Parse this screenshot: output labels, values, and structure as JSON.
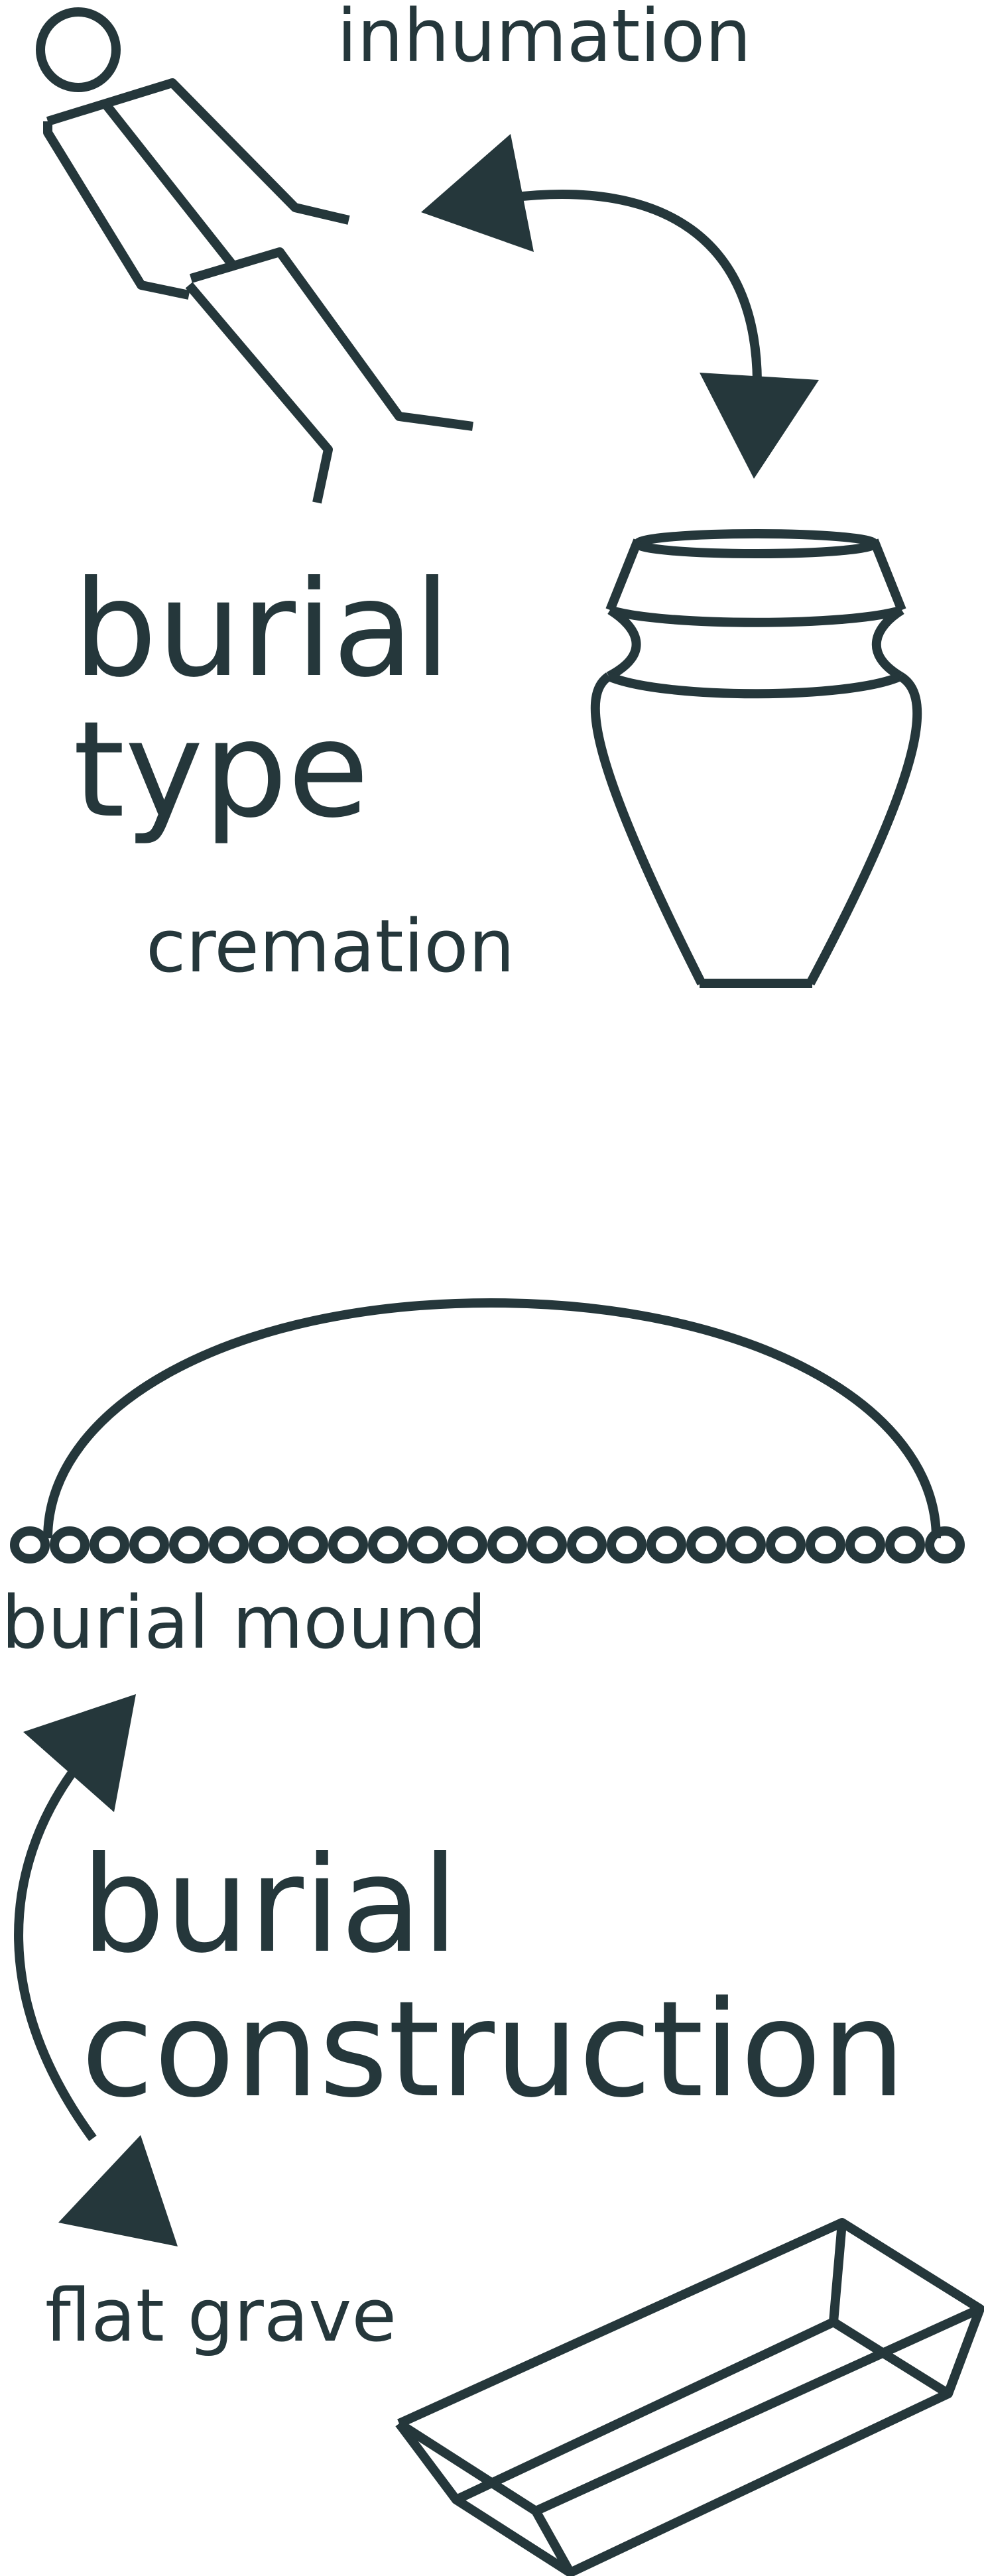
{
  "colors": {
    "ink": "#25373b",
    "background": "#ffffff"
  },
  "burial_type": {
    "title_line1": "burial",
    "title_line2": "type",
    "option_top": "inhumation",
    "option_bottom": "cremation",
    "icons": [
      "skeleton-icon",
      "urn-icon",
      "double-arrow-icon"
    ]
  },
  "burial_construction": {
    "title_line1": "burial",
    "title_line2": "construction",
    "option_top": "burial mound",
    "option_bottom": "flat grave",
    "icons": [
      "mound-icon",
      "flat-grave-icon",
      "double-arrow-icon"
    ]
  }
}
